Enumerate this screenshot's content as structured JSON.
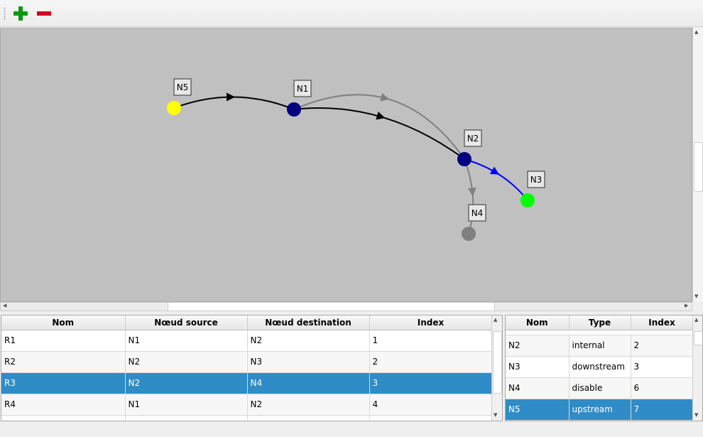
{
  "toolbar": {
    "add_icon": "plus-icon",
    "remove_icon": "minus-icon",
    "add_color": "#0a9a12",
    "remove_color": "#d0001e"
  },
  "graph": {
    "nodes": [
      {
        "id": "N5",
        "color": "#ffff00"
      },
      {
        "id": "N1",
        "color": "#000080"
      },
      {
        "id": "N2",
        "color": "#000080"
      },
      {
        "id": "N3",
        "color": "#00ff00"
      },
      {
        "id": "N4",
        "color": "#808080"
      }
    ],
    "edges": [
      {
        "from": "N5",
        "to": "N1",
        "color": "#000000"
      },
      {
        "from": "N1",
        "to": "N2",
        "color": "#000000"
      },
      {
        "from": "N1",
        "to": "N2",
        "color": "#808080"
      },
      {
        "from": "N2",
        "to": "N3",
        "color": "#0000ff"
      },
      {
        "from": "N2",
        "to": "N4",
        "color": "#808080"
      }
    ]
  },
  "routes_table": {
    "headers": [
      "Nom",
      "Nœud source",
      "Nœud destination",
      "Index"
    ],
    "rows": [
      [
        "R1",
        "N1",
        "N2",
        "1"
      ],
      [
        "R2",
        "N2",
        "N3",
        "2"
      ],
      [
        "R3",
        "N2",
        "N4",
        "3"
      ],
      [
        "R4",
        "N1",
        "N2",
        "4"
      ]
    ],
    "selected_row": 2
  },
  "nodes_table": {
    "headers": [
      "Nom",
      "Type",
      "Index"
    ],
    "rows": [
      [
        "N2",
        "internal",
        "2"
      ],
      [
        "N3",
        "downstream",
        "3"
      ],
      [
        "N4",
        "disable",
        "6"
      ],
      [
        "N5",
        "upstream",
        "7"
      ]
    ],
    "selected_row": 3
  },
  "selection_color": "#308cc6"
}
